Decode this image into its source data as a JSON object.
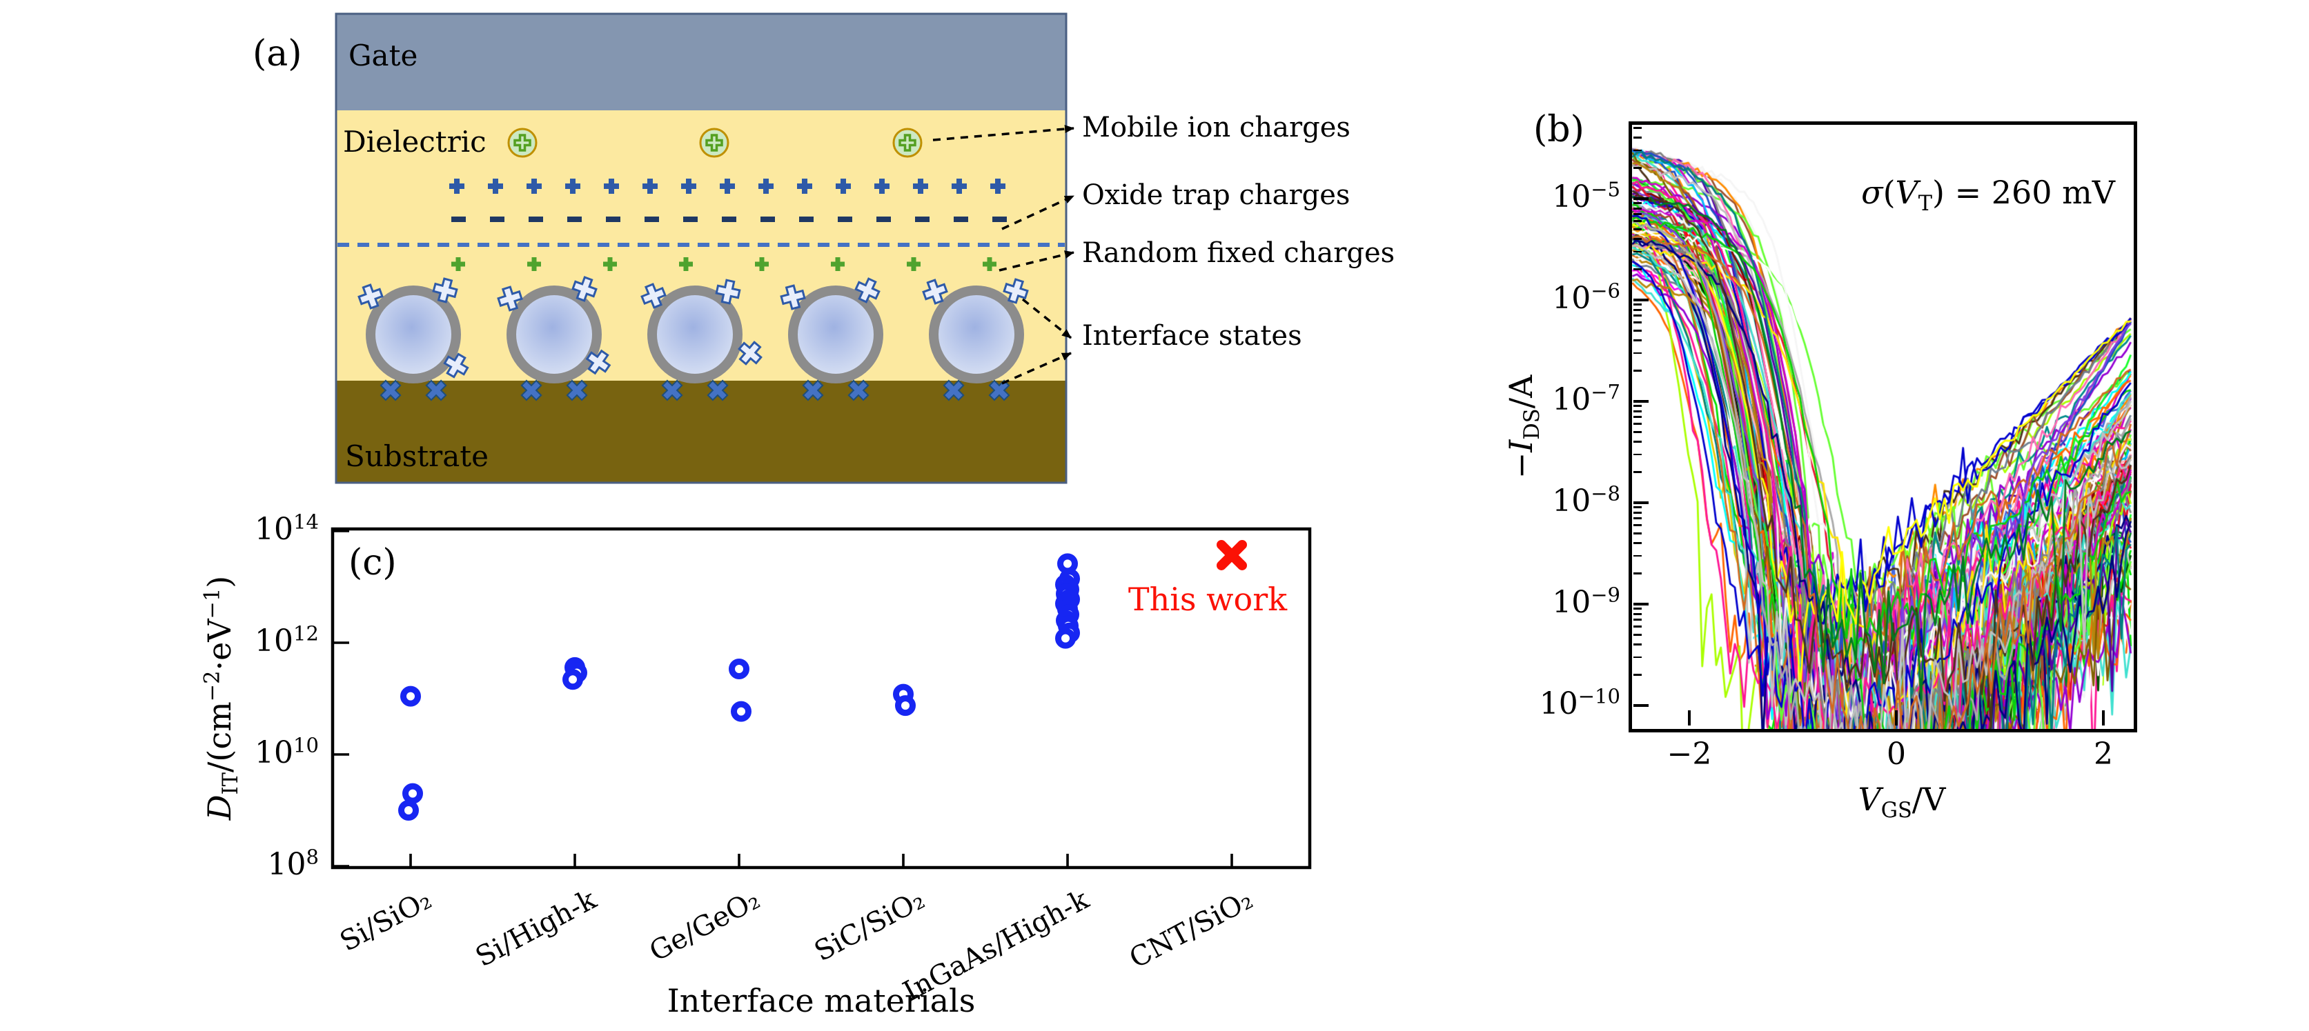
{
  "page": {
    "background": "#ffffff"
  },
  "panel_a": {
    "label": "(a)",
    "gate_label": "Gate",
    "dielectric_label": "Dielectric",
    "substrate_label": "Substrate",
    "legend_labels": [
      "Mobile ion charges",
      "Oxide trap charges",
      "Random fixed charges",
      "Interface states"
    ],
    "element_counts": {
      "mobile_ions": 3,
      "oxide_trap_plus": 15,
      "oxide_trap_minus": 15,
      "random_fixed_plus": 8,
      "nanotubes": 5,
      "substrate_x_per_tube": 2
    },
    "colors": {
      "gate": "#8496b0",
      "dielectric": "#fce9a0",
      "substrate": "#786310",
      "box_border": "#4a5f82",
      "oxide_plus": "#2e5aa8",
      "oxide_minus": "#1f3864",
      "interface_dash": "#4472c4",
      "fixed_plus": "#4fa32e",
      "ion_ring": "#bf9000",
      "ion_fill": "#cde9c2",
      "ion_plus": "#54a021",
      "tube_ring": "#8c8c8c",
      "tube_fill_center": "#9fb2e2",
      "tube_fill_edge": "#dce4f5",
      "cross_fill": "#e8eefb",
      "cross_stroke": "#2e5aa8",
      "substrate_x": "#4472c4",
      "substrate_x_stroke": "#1f4e79",
      "arrow": "#000000"
    }
  },
  "panel_b": {
    "label": "(b)",
    "annotation_parts": [
      {
        "t": "σ",
        "s": "i"
      },
      {
        "t": "("
      },
      {
        "t": "V",
        "s": "i"
      },
      {
        "t": "T",
        "s": "sub"
      },
      {
        "t": ") = 260 mV"
      }
    ],
    "xlabel_parts": [
      {
        "t": "V",
        "s": "i"
      },
      {
        "t": "GS",
        "s": "sub"
      },
      {
        "t": "/V"
      }
    ],
    "ylabel_parts": [
      {
        "t": "−"
      },
      {
        "t": "I",
        "s": "i"
      },
      {
        "t": "DS",
        "s": "sub"
      },
      {
        "t": "/A"
      }
    ],
    "xtick_labels": [
      "−2",
      "0",
      "2"
    ],
    "ytick_exponents": [
      -5,
      -6,
      -7,
      -8,
      -9,
      -10
    ]
  },
  "panel_c": {
    "label": "(c)",
    "xlabel": "Interface materials",
    "ylabel_parts": [
      {
        "t": "D",
        "s": "i"
      },
      {
        "t": "IT",
        "s": "sub"
      },
      {
        "t": "/(cm"
      },
      {
        "t": "−2",
        "s": "sup"
      },
      {
        "t": "·eV"
      },
      {
        "t": "−1",
        "s": "sup"
      },
      {
        "t": ")"
      }
    ],
    "ytick_exponents": [
      14,
      12,
      10,
      8
    ],
    "this_work_label": "This work"
  },
  "chart_data": [
    {
      "panel": "b",
      "type": "line",
      "title": "",
      "xlabel": "V_GS/V",
      "ylabel": "-I_DS/A",
      "x_range": [
        -2.55,
        2.3
      ],
      "y_log10_range": [
        -10.23,
        -4.27
      ],
      "x_ticks": [
        -2,
        0,
        2
      ],
      "y_ticks_log10": [
        -5,
        -6,
        -7,
        -8,
        -9,
        -10
      ],
      "grid": false,
      "annotation": "σ(V_T) = 260 mV",
      "description": "About 110 overlaid p-type transfer curves (-I_DS vs V_GS) of nominally identical CNT FETs; on-current plateau ~1e-6..3e-5 A at V_GS=-2.5 V, steep subthreshold drop near V_T (spread sigma = 260 mV around ~-1.25 V), noisy off-floor ~1e-10 A, ambipolar rise to ~1e-9..7e-7 A at V_GS=+2.3 V",
      "n_curves": 110,
      "model": {
        "seed": 20240613,
        "v_step": 0.045,
        "vt_mean": -1.25,
        "vt_sigma": 0.26,
        "on_log_mean": -5.05,
        "on_log_sigma": 0.38,
        "on_log_clip": [
          -6.1,
          -4.5
        ],
        "plateau_tilt": -0.16,
        "trans_width_min": 0.18,
        "trans_width_rand": 0.1,
        "floor_log_mean": -10.4,
        "floor_log_sigma": 0.5,
        "floor_log_clip": [
          -11.5,
          -9.4
        ],
        "amb_end_mean": -7.3,
        "amb_end_sigma": 1.0,
        "amb_end_clip": [
          -9.8,
          -6.15
        ],
        "amb_slope_min": 0.9,
        "amb_slope_rand": 0.9,
        "noise_base": 0.02,
        "noise_deep": 0.28
      },
      "palette": [
        "#00e400",
        "#18ff2a",
        "#0bd10b",
        "#007d1f",
        "#004d00",
        "#66ff33",
        "#aaff00",
        "#ffff00",
        "#ffe400",
        "#e8c800",
        "#ff8c00",
        "#ff6600",
        "#d2691e",
        "#a0522d",
        "#8b0000",
        "#ff0000",
        "#e8112d",
        "#ff1493",
        "#ff69b4",
        "#ffb6c1",
        "#ff00ff",
        "#cc00cc",
        "#8b008b",
        "#9400d3",
        "#7a3fe0",
        "#5500aa",
        "#0000cd",
        "#0000ff",
        "#1e50c8",
        "#000080",
        "#4169e1",
        "#00bfff",
        "#00ffff",
        "#40e0d0",
        "#008b8b",
        "#008080",
        "#708090",
        "#808080",
        "#a9a9a9",
        "#c0c0c0",
        "#dcdcdc",
        "#f5f5f5",
        "#ffffff",
        "#101010",
        "#4d3319",
        "#806000",
        "#b8860b"
      ]
    },
    {
      "panel": "c",
      "type": "scatter",
      "log_y": true,
      "xlabel": "Interface materials",
      "ylabel": "D_IT/(cm^-2 . eV^-1)",
      "ylim": [
        100000000.0,
        100000000000000.0
      ],
      "y_ticks": [
        100000000.0,
        10000000000.0,
        1000000000000.0,
        100000000000000.0
      ],
      "categories": [
        "Si/SiO₂",
        "Si/High-k",
        "Ge/GeO₂",
        "SiC/SiO₂",
        "InGaAs/High-k",
        "CNT/SiO₂"
      ],
      "literature_series": {
        "marker": "open-circle",
        "color": "#1726f2",
        "values_by_category": [
          [
            110000000000.0,
            2000000000.0,
            1000000000.0
          ],
          [
            360000000000.0,
            290000000000.0,
            220000000000.0
          ],
          [
            340000000000.0,
            59000000000.0
          ],
          [
            120000000000.0,
            75000000000.0
          ],
          [
            26000000000000.0,
            14000000000000.0,
            11000000000000.0,
            9000000000000.0,
            7500000000000.0,
            6000000000000.0,
            5000000000000.0,
            4000000000000.0,
            3200000000000.0,
            2500000000000.0,
            2000000000000.0,
            1500000000000.0,
            1200000000000.0
          ],
          []
        ]
      },
      "this_work": {
        "marker": "X",
        "color": "#fb1105",
        "category": "CNT/SiO₂",
        "value": 37000000000000.0,
        "label": "This work"
      }
    }
  ]
}
